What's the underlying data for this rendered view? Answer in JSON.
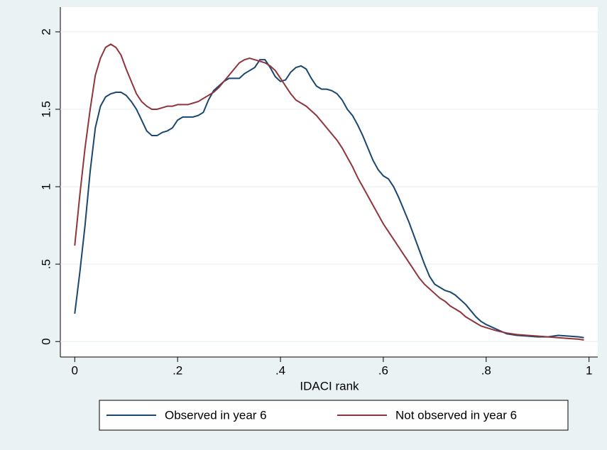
{
  "chart_data": {
    "type": "line",
    "xlabel": "IDACI rank",
    "x": [
      0,
      0.01,
      0.02,
      0.03,
      0.04,
      0.05,
      0.06,
      0.07,
      0.08,
      0.09,
      0.1,
      0.11,
      0.12,
      0.13,
      0.14,
      0.15,
      0.16,
      0.17,
      0.18,
      0.19,
      0.2,
      0.21,
      0.22,
      0.23,
      0.24,
      0.25,
      0.26,
      0.27,
      0.28,
      0.29,
      0.3,
      0.31,
      0.32,
      0.33,
      0.34,
      0.35,
      0.36,
      0.37,
      0.38,
      0.39,
      0.4,
      0.41,
      0.42,
      0.43,
      0.44,
      0.45,
      0.46,
      0.47,
      0.48,
      0.49,
      0.5,
      0.51,
      0.52,
      0.53,
      0.54,
      0.55,
      0.56,
      0.57,
      0.58,
      0.59,
      0.6,
      0.61,
      0.62,
      0.63,
      0.64,
      0.65,
      0.66,
      0.67,
      0.68,
      0.69,
      0.7,
      0.71,
      0.72,
      0.73,
      0.74,
      0.75,
      0.76,
      0.77,
      0.78,
      0.79,
      0.8,
      0.82,
      0.84,
      0.86,
      0.88,
      0.9,
      0.92,
      0.94,
      0.96,
      0.98,
      0.99
    ],
    "series": [
      {
        "name": "Observed in year 6",
        "color": "#1a476f",
        "values": [
          0.18,
          0.45,
          0.75,
          1.1,
          1.38,
          1.52,
          1.58,
          1.6,
          1.61,
          1.61,
          1.59,
          1.55,
          1.5,
          1.43,
          1.36,
          1.33,
          1.33,
          1.35,
          1.36,
          1.38,
          1.43,
          1.45,
          1.45,
          1.45,
          1.46,
          1.48,
          1.56,
          1.62,
          1.65,
          1.68,
          1.7,
          1.7,
          1.7,
          1.73,
          1.75,
          1.77,
          1.82,
          1.82,
          1.77,
          1.71,
          1.68,
          1.69,
          1.74,
          1.77,
          1.78,
          1.76,
          1.7,
          1.65,
          1.63,
          1.63,
          1.62,
          1.6,
          1.56,
          1.5,
          1.46,
          1.4,
          1.33,
          1.25,
          1.17,
          1.11,
          1.07,
          1.05,
          1.0,
          0.93,
          0.85,
          0.77,
          0.68,
          0.59,
          0.5,
          0.42,
          0.37,
          0.35,
          0.33,
          0.32,
          0.3,
          0.27,
          0.24,
          0.2,
          0.16,
          0.13,
          0.11,
          0.08,
          0.05,
          0.04,
          0.035,
          0.03,
          0.03,
          0.04,
          0.035,
          0.03,
          0.025
        ]
      },
      {
        "name": "Not observed in year 6",
        "color": "#90353b",
        "values": [
          0.62,
          0.95,
          1.25,
          1.5,
          1.72,
          1.83,
          1.9,
          1.92,
          1.9,
          1.85,
          1.76,
          1.68,
          1.6,
          1.55,
          1.52,
          1.5,
          1.5,
          1.51,
          1.52,
          1.52,
          1.53,
          1.53,
          1.53,
          1.54,
          1.55,
          1.57,
          1.59,
          1.61,
          1.64,
          1.68,
          1.72,
          1.76,
          1.8,
          1.82,
          1.83,
          1.82,
          1.81,
          1.8,
          1.78,
          1.75,
          1.7,
          1.65,
          1.6,
          1.56,
          1.54,
          1.52,
          1.49,
          1.46,
          1.42,
          1.38,
          1.34,
          1.3,
          1.25,
          1.19,
          1.13,
          1.06,
          1.0,
          0.94,
          0.88,
          0.82,
          0.76,
          0.71,
          0.66,
          0.61,
          0.56,
          0.51,
          0.46,
          0.41,
          0.37,
          0.34,
          0.31,
          0.28,
          0.26,
          0.23,
          0.21,
          0.19,
          0.16,
          0.14,
          0.12,
          0.1,
          0.09,
          0.07,
          0.055,
          0.045,
          0.04,
          0.035,
          0.03,
          0.025,
          0.02,
          0.015,
          0.01
        ]
      }
    ],
    "xlim": [
      -0.028,
      1.017
    ],
    "ylim": [
      -0.1,
      2.16
    ],
    "xticks": [
      0,
      {
        "value": 0.2,
        "label": ".2"
      },
      {
        "value": 0.4,
        "label": ".4"
      },
      {
        "value": 0.6,
        "label": ".6"
      },
      {
        "value": 0.8,
        "label": ".8"
      },
      1
    ],
    "yticks": [
      0,
      {
        "value": 0.5,
        "label": ".5"
      },
      1,
      1.5,
      2
    ],
    "grid": true,
    "legend": "bottom"
  }
}
